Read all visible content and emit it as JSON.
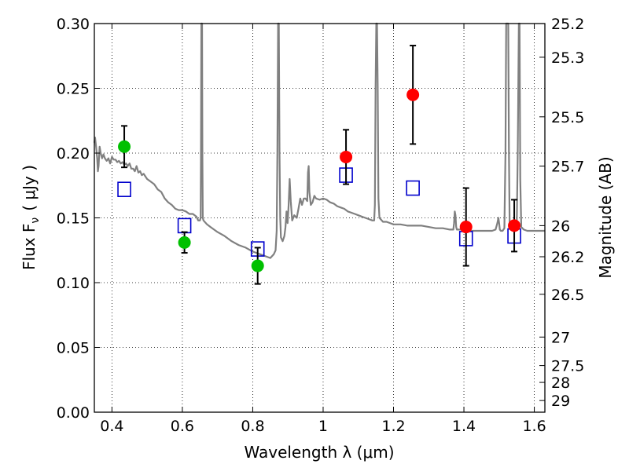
{
  "chart_data": {
    "type": "scatter",
    "xlabel": "Wavelength  λ (μm)",
    "ylabel_left": "Flux  F",
    "ylabel_left_sub": "ν",
    "ylabel_left_unit": "( μJy )",
    "ylabel_right": "Magnitude (AB)",
    "xlim": [
      0.35,
      1.63
    ],
    "ylim": [
      0.0,
      0.3
    ],
    "x_ticks": [
      0.4,
      0.6,
      0.8,
      1.0,
      1.2,
      1.4,
      1.6
    ],
    "x_tick_labels": [
      "0.4",
      "0.6",
      "0.8",
      "1",
      "1.2",
      "1.4",
      "1.6"
    ],
    "y_ticks": [
      0.0,
      0.05,
      0.1,
      0.15,
      0.2,
      0.25,
      0.3
    ],
    "y_tick_labels": [
      "0.00",
      "0.05",
      "0.10",
      "0.15",
      "0.20",
      "0.25",
      "0.30"
    ],
    "right_ticks": [
      {
        "label": "25.2",
        "flux": 0.3
      },
      {
        "label": "25.3",
        "flux": 0.274
      },
      {
        "label": "25.5",
        "flux": 0.228
      },
      {
        "label": "25.7",
        "flux": 0.19
      },
      {
        "label": "26",
        "flux": 0.144
      },
      {
        "label": "26.2",
        "flux": 0.12
      },
      {
        "label": "26.5",
        "flux": 0.091
      },
      {
        "label": "27",
        "flux": 0.058
      },
      {
        "label": "27.5",
        "flux": 0.036
      },
      {
        "label": "28",
        "flux": 0.023
      },
      {
        "label": "29",
        "flux": 0.009
      }
    ],
    "grid": true,
    "series": [
      {
        "kind": "points_errorbar",
        "color": "#00c000",
        "points": [
          {
            "x": 0.435,
            "y": 0.205,
            "err": 0.016
          },
          {
            "x": 0.606,
            "y": 0.131,
            "err": 0.008
          },
          {
            "x": 0.814,
            "y": 0.113,
            "err": 0.014
          }
        ]
      },
      {
        "kind": "points_errorbar",
        "color": "#ff0000",
        "points": [
          {
            "x": 1.065,
            "y": 0.197,
            "err": 0.021
          },
          {
            "x": 1.255,
            "y": 0.245,
            "err": 0.038
          },
          {
            "x": 1.406,
            "y": 0.143,
            "err": 0.03
          },
          {
            "x": 1.543,
            "y": 0.144,
            "err": 0.02
          }
        ]
      },
      {
        "kind": "open_squares",
        "color": "#0000cc",
        "points": [
          {
            "x": 0.435,
            "y": 0.172
          },
          {
            "x": 0.606,
            "y": 0.144
          },
          {
            "x": 0.814,
            "y": 0.126
          },
          {
            "x": 1.065,
            "y": 0.183
          },
          {
            "x": 1.255,
            "y": 0.173
          },
          {
            "x": 1.406,
            "y": 0.134
          },
          {
            "x": 1.543,
            "y": 0.136
          }
        ]
      },
      {
        "kind": "line",
        "color": "#808080",
        "points": [
          [
            0.35,
            0.208
          ],
          [
            0.352,
            0.212
          ],
          [
            0.355,
            0.205
          ],
          [
            0.358,
            0.196
          ],
          [
            0.36,
            0.186
          ],
          [
            0.362,
            0.19
          ],
          [
            0.365,
            0.205
          ],
          [
            0.368,
            0.2
          ],
          [
            0.372,
            0.196
          ],
          [
            0.376,
            0.199
          ],
          [
            0.38,
            0.196
          ],
          [
            0.385,
            0.194
          ],
          [
            0.39,
            0.196
          ],
          [
            0.395,
            0.192
          ],
          [
            0.4,
            0.197
          ],
          [
            0.405,
            0.195
          ],
          [
            0.41,
            0.195
          ],
          [
            0.415,
            0.193
          ],
          [
            0.42,
            0.194
          ],
          [
            0.425,
            0.192
          ],
          [
            0.43,
            0.193
          ],
          [
            0.435,
            0.191
          ],
          [
            0.44,
            0.192
          ],
          [
            0.445,
            0.19
          ],
          [
            0.45,
            0.192
          ],
          [
            0.455,
            0.188
          ],
          [
            0.46,
            0.188
          ],
          [
            0.465,
            0.186
          ],
          [
            0.47,
            0.19
          ],
          [
            0.475,
            0.185
          ],
          [
            0.48,
            0.186
          ],
          [
            0.485,
            0.183
          ],
          [
            0.49,
            0.184
          ],
          [
            0.5,
            0.18
          ],
          [
            0.51,
            0.178
          ],
          [
            0.52,
            0.176
          ],
          [
            0.53,
            0.172
          ],
          [
            0.54,
            0.17
          ],
          [
            0.55,
            0.165
          ],
          [
            0.56,
            0.162
          ],
          [
            0.57,
            0.16
          ],
          [
            0.58,
            0.157
          ],
          [
            0.59,
            0.156
          ],
          [
            0.6,
            0.156
          ],
          [
            0.61,
            0.155
          ],
          [
            0.62,
            0.153
          ],
          [
            0.63,
            0.153
          ],
          [
            0.64,
            0.151
          ],
          [
            0.645,
            0.148
          ],
          [
            0.65,
            0.148
          ],
          [
            0.652,
            0.15
          ],
          [
            0.653,
            0.2
          ],
          [
            0.654,
            0.3
          ],
          [
            0.656,
            0.3
          ],
          [
            0.657,
            0.2
          ],
          [
            0.658,
            0.15
          ],
          [
            0.66,
            0.148
          ],
          [
            0.67,
            0.145
          ],
          [
            0.68,
            0.143
          ],
          [
            0.69,
            0.141
          ],
          [
            0.7,
            0.139
          ],
          [
            0.72,
            0.136
          ],
          [
            0.74,
            0.132
          ],
          [
            0.76,
            0.129
          ],
          [
            0.78,
            0.127
          ],
          [
            0.8,
            0.124
          ],
          [
            0.82,
            0.122
          ],
          [
            0.84,
            0.12
          ],
          [
            0.85,
            0.119
          ],
          [
            0.86,
            0.122
          ],
          [
            0.865,
            0.125
          ],
          [
            0.868,
            0.14
          ],
          [
            0.87,
            0.2
          ],
          [
            0.872,
            0.3
          ],
          [
            0.874,
            0.3
          ],
          [
            0.876,
            0.2
          ],
          [
            0.878,
            0.15
          ],
          [
            0.88,
            0.135
          ],
          [
            0.885,
            0.132
          ],
          [
            0.89,
            0.136
          ],
          [
            0.893,
            0.143
          ],
          [
            0.896,
            0.155
          ],
          [
            0.899,
            0.146
          ],
          [
            0.902,
            0.16
          ],
          [
            0.905,
            0.18
          ],
          [
            0.908,
            0.163
          ],
          [
            0.912,
            0.148
          ],
          [
            0.918,
            0.152
          ],
          [
            0.925,
            0.15
          ],
          [
            0.93,
            0.157
          ],
          [
            0.935,
            0.165
          ],
          [
            0.94,
            0.16
          ],
          [
            0.945,
            0.165
          ],
          [
            0.95,
            0.165
          ],
          [
            0.955,
            0.163
          ],
          [
            0.957,
            0.185
          ],
          [
            0.959,
            0.19
          ],
          [
            0.961,
            0.17
          ],
          [
            0.965,
            0.16
          ],
          [
            0.97,
            0.162
          ],
          [
            0.975,
            0.167
          ],
          [
            0.98,
            0.165
          ],
          [
            0.99,
            0.164
          ],
          [
            1.0,
            0.165
          ],
          [
            1.01,
            0.164
          ],
          [
            1.02,
            0.162
          ],
          [
            1.03,
            0.161
          ],
          [
            1.04,
            0.159
          ],
          [
            1.05,
            0.158
          ],
          [
            1.06,
            0.157
          ],
          [
            1.07,
            0.155
          ],
          [
            1.08,
            0.154
          ],
          [
            1.09,
            0.153
          ],
          [
            1.1,
            0.152
          ],
          [
            1.11,
            0.151
          ],
          [
            1.12,
            0.15
          ],
          [
            1.13,
            0.149
          ],
          [
            1.14,
            0.148
          ],
          [
            1.145,
            0.148
          ],
          [
            1.147,
            0.16
          ],
          [
            1.149,
            0.25
          ],
          [
            1.151,
            0.3
          ],
          [
            1.153,
            0.3
          ],
          [
            1.155,
            0.25
          ],
          [
            1.157,
            0.165
          ],
          [
            1.16,
            0.15
          ],
          [
            1.17,
            0.147
          ],
          [
            1.18,
            0.147
          ],
          [
            1.19,
            0.146
          ],
          [
            1.2,
            0.145
          ],
          [
            1.22,
            0.145
          ],
          [
            1.24,
            0.144
          ],
          [
            1.26,
            0.144
          ],
          [
            1.28,
            0.144
          ],
          [
            1.3,
            0.143
          ],
          [
            1.32,
            0.142
          ],
          [
            1.34,
            0.142
          ],
          [
            1.36,
            0.141
          ],
          [
            1.37,
            0.141
          ],
          [
            1.372,
            0.146
          ],
          [
            1.374,
            0.155
          ],
          [
            1.376,
            0.152
          ],
          [
            1.378,
            0.143
          ],
          [
            1.38,
            0.141
          ],
          [
            1.39,
            0.141
          ],
          [
            1.4,
            0.141
          ],
          [
            1.42,
            0.14
          ],
          [
            1.44,
            0.14
          ],
          [
            1.46,
            0.14
          ],
          [
            1.48,
            0.14
          ],
          [
            1.49,
            0.141
          ],
          [
            1.495,
            0.146
          ],
          [
            1.498,
            0.15
          ],
          [
            1.5,
            0.146
          ],
          [
            1.502,
            0.141
          ],
          [
            1.505,
            0.14
          ],
          [
            1.51,
            0.14
          ],
          [
            1.515,
            0.142
          ],
          [
            1.518,
            0.2
          ],
          [
            1.52,
            0.3
          ],
          [
            1.526,
            0.3
          ],
          [
            1.528,
            0.2
          ],
          [
            1.53,
            0.145
          ],
          [
            1.535,
            0.143
          ],
          [
            1.54,
            0.142
          ],
          [
            1.545,
            0.142
          ],
          [
            1.55,
            0.142
          ],
          [
            1.553,
            0.2
          ],
          [
            1.556,
            0.3
          ],
          [
            1.558,
            0.3
          ],
          [
            1.56,
            0.18
          ],
          [
            1.563,
            0.143
          ],
          [
            1.57,
            0.141
          ],
          [
            1.58,
            0.14
          ],
          [
            1.6,
            0.14
          ],
          [
            1.62,
            0.14
          ],
          [
            1.63,
            0.14
          ]
        ]
      }
    ]
  }
}
